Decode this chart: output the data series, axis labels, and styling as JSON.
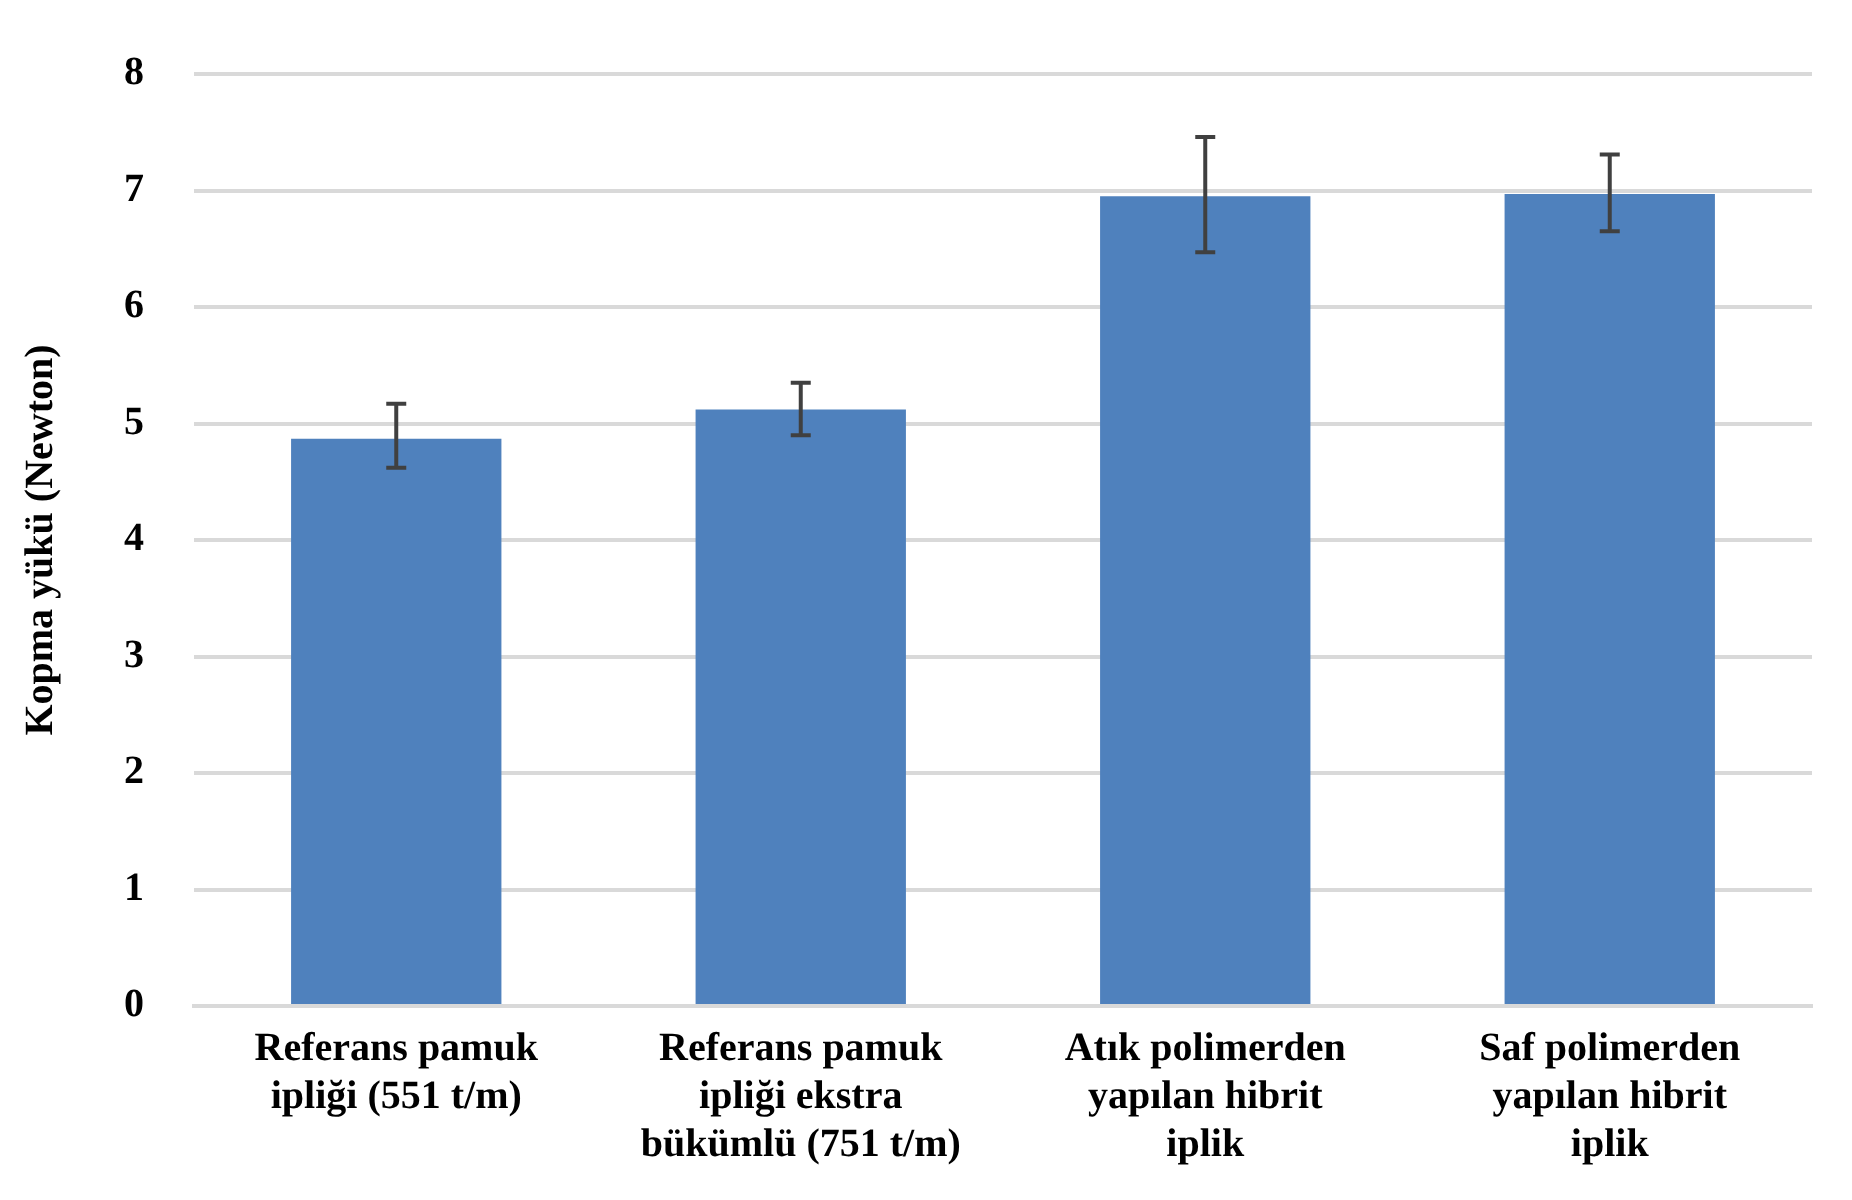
{
  "chart_data": {
    "type": "bar",
    "ylabel": "Kopma yükü (Newton)",
    "categories": [
      "Referans pamuk ipliği (551 t/m)",
      "Referans pamuk ipliği ekstra bükümlü (751 t/m)",
      "Atık polimerden yapılan hibrit iplik",
      "Saf polimerden yapılan hibrit iplik"
    ],
    "values": [
      4.87,
      5.12,
      6.95,
      6.97
    ],
    "errors": [
      [
        4.62,
        5.17
      ],
      [
        4.9,
        5.35
      ],
      [
        6.47,
        7.46
      ],
      [
        6.65,
        7.31
      ]
    ],
    "color": "#4f81bd",
    "ylim": [
      0,
      8
    ],
    "yticks": [
      0,
      1,
      2,
      3,
      4,
      5,
      6,
      7,
      8
    ],
    "grid": "y",
    "legend": false
  }
}
